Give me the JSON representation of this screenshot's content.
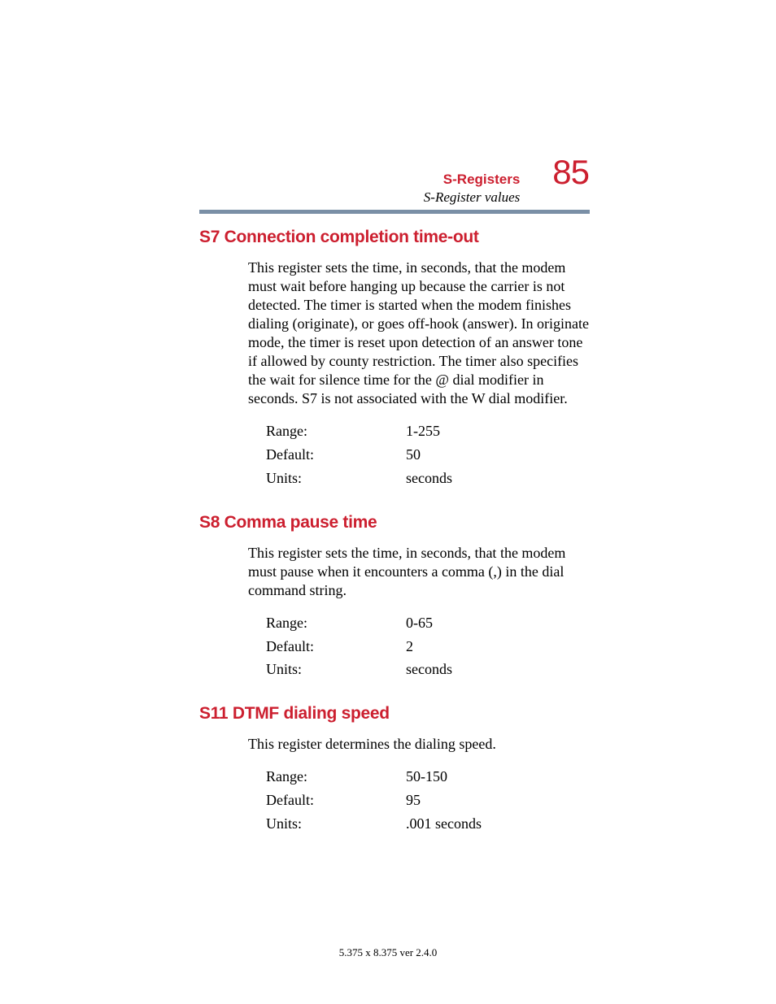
{
  "header": {
    "chapter_label": "S-Registers",
    "subtitle": "S-Register values",
    "page_number": "85"
  },
  "colors": {
    "accent": "#cc1f2f",
    "rule": "#7a8fa6",
    "text": "#000000",
    "background": "#ffffff"
  },
  "typography": {
    "heading_font": "Arial",
    "body_font": "Times New Roman",
    "heading_size_pt": 16,
    "body_size_pt": 13,
    "page_number_size_pt": 32
  },
  "sections": [
    {
      "heading": "S7 Connection completion time-out",
      "body": "This register sets the time, in seconds, that the modem must wait before hanging up because the carrier is not detected. The timer is started when the modem finishes dialing (originate), or goes off-hook (answer). In originate mode, the timer is reset upon detection of an answer tone if allowed by county restriction. The timer also specifies the wait for silence time for the @ dial modifier in seconds. S7 is not associated with the W dial modifier.",
      "table": [
        {
          "key": "Range:",
          "value": "1-255"
        },
        {
          "key": "Default:",
          "value": "50"
        },
        {
          "key": "Units:",
          "value": "seconds"
        }
      ]
    },
    {
      "heading": "S8 Comma pause time",
      "body": "This register sets the time, in seconds, that the modem must pause when it encounters a comma (,) in the dial command string.",
      "table": [
        {
          "key": "Range:",
          "value": "0-65"
        },
        {
          "key": "Default:",
          "value": "2"
        },
        {
          "key": "Units:",
          "value": "seconds"
        }
      ]
    },
    {
      "heading": "S11 DTMF dialing speed",
      "body": "This register determines the dialing speed.",
      "table": [
        {
          "key": "Range:",
          "value": "50-150"
        },
        {
          "key": "Default:",
          "value": "95"
        },
        {
          "key": "Units:",
          "value": ".001 seconds"
        }
      ]
    }
  ],
  "footer": "5.375 x 8.375 ver 2.4.0"
}
